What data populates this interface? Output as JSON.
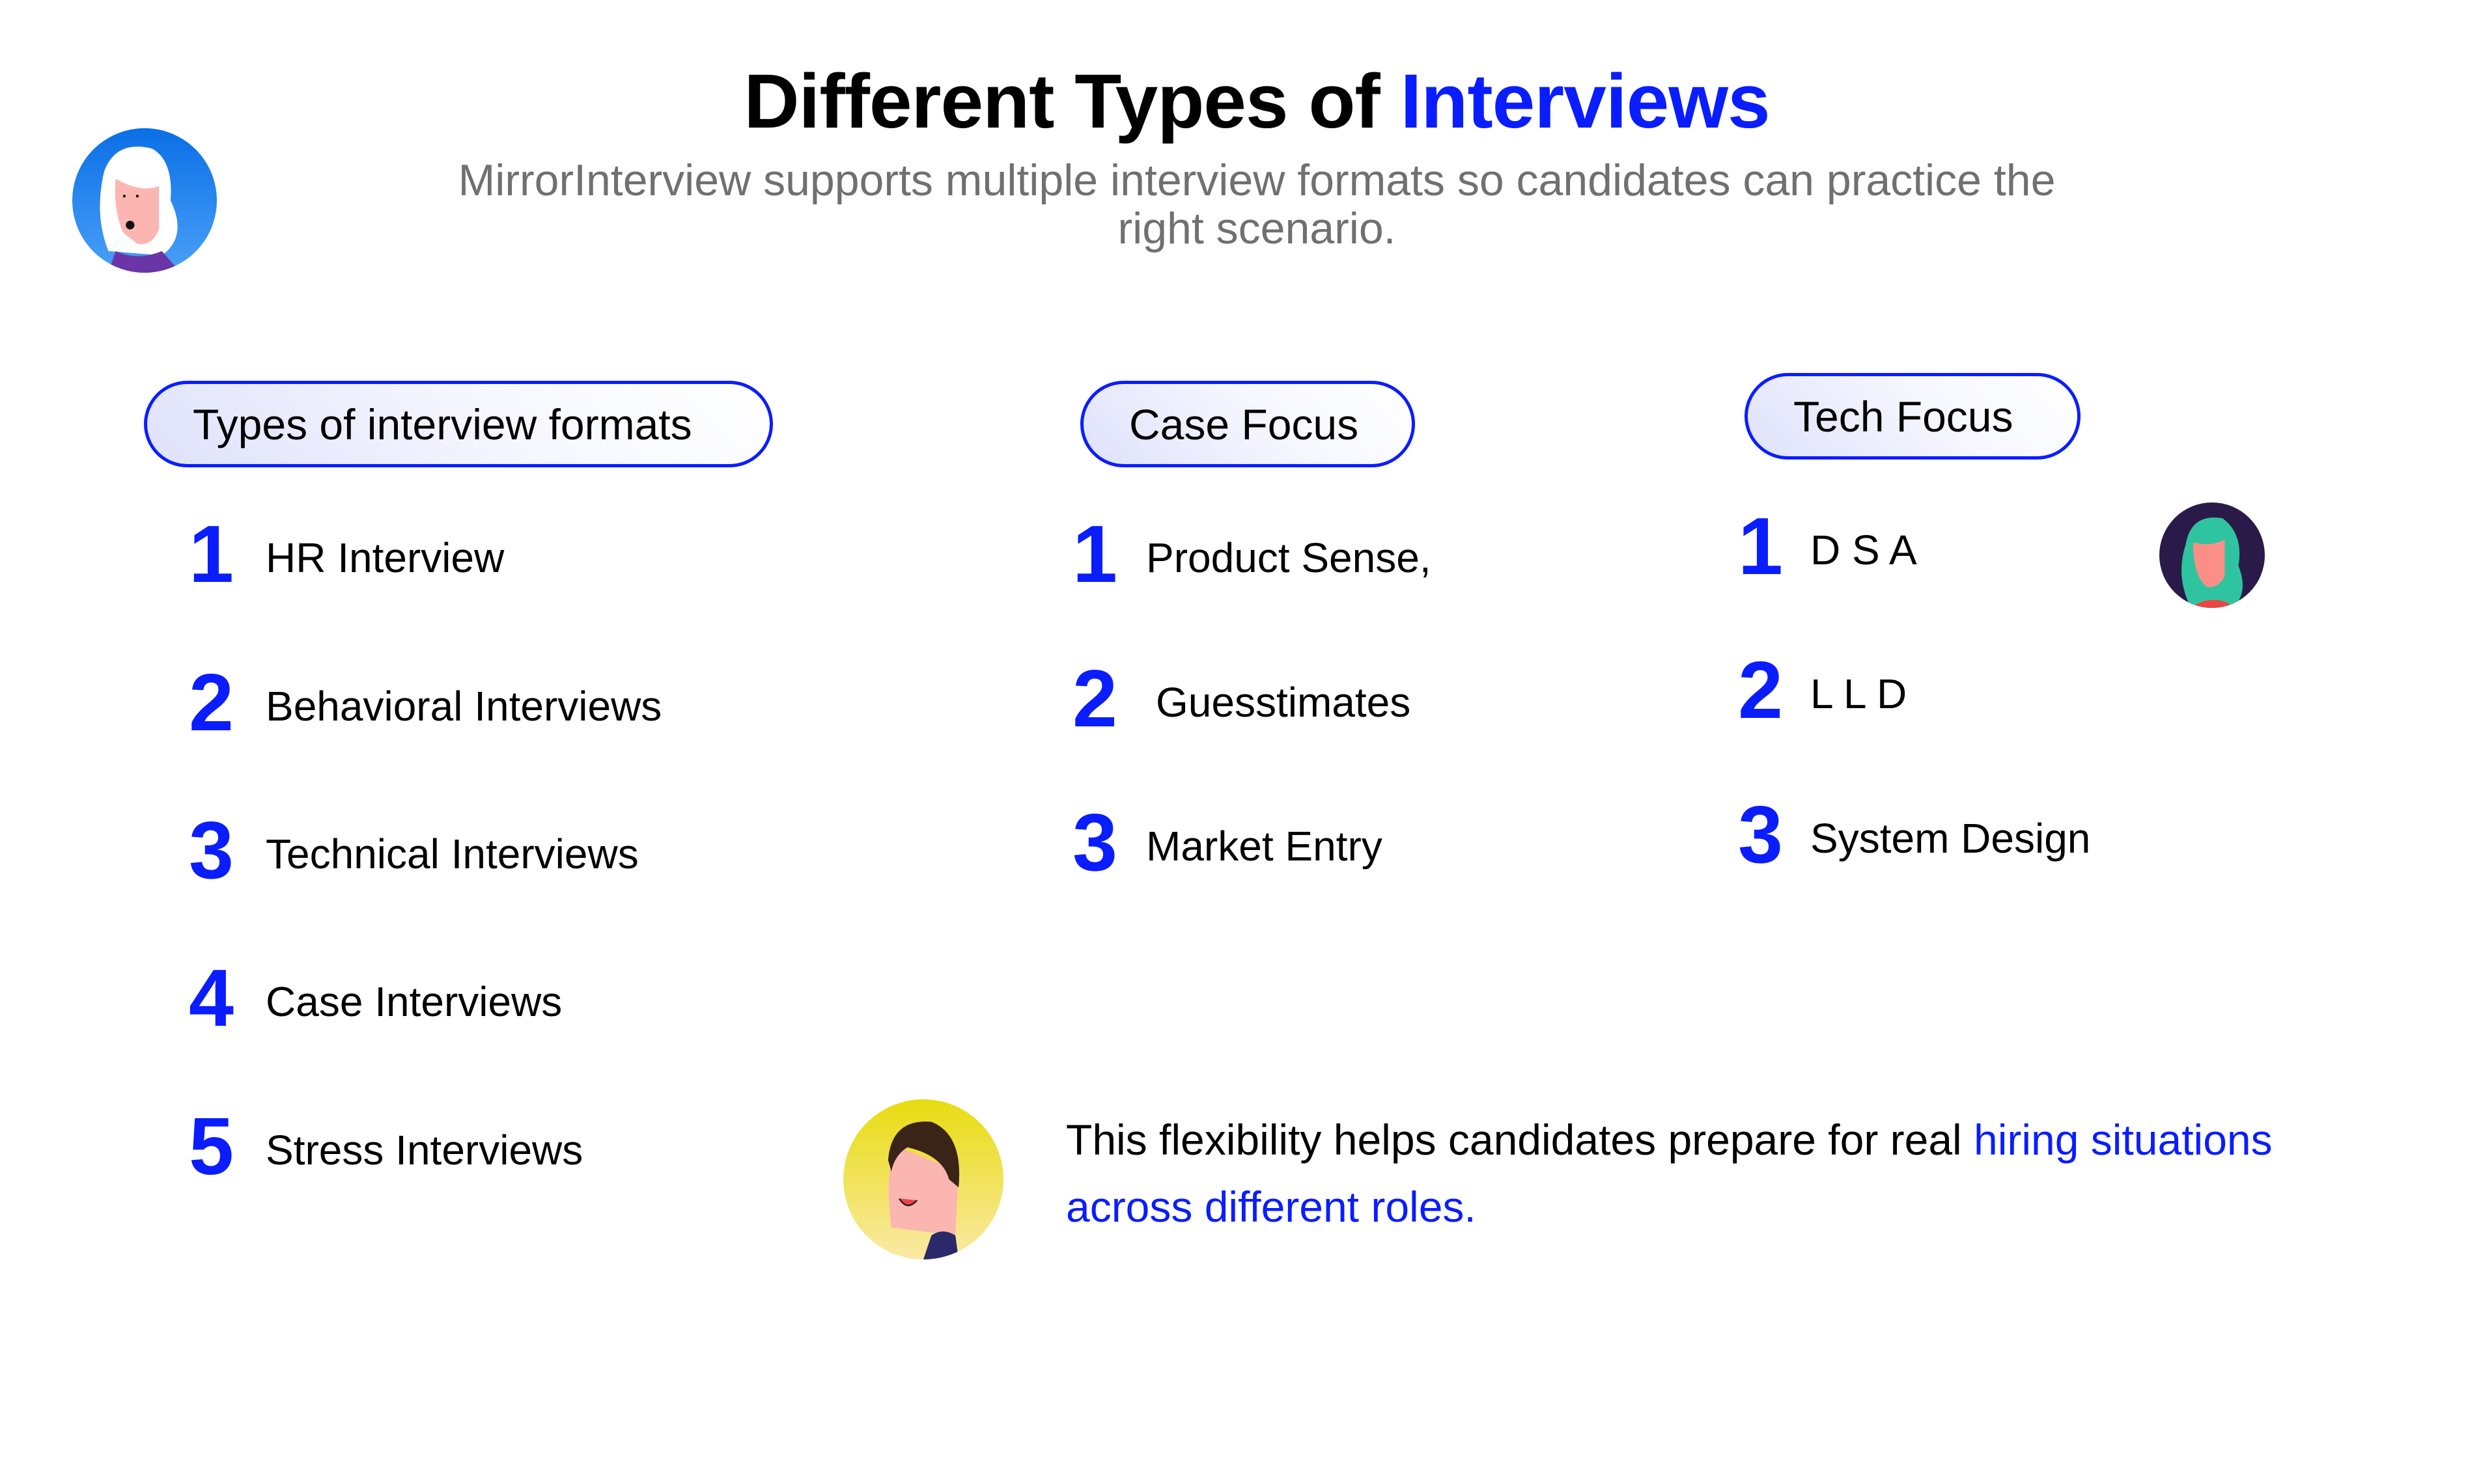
{
  "header": {
    "title_main": "Different Types of",
    "title_accent": "Interviews",
    "subtitle": "MirrorInterview supports multiple interview formats so candidates can practice the right scenario."
  },
  "columns": [
    {
      "heading": "Types of interview formats",
      "items": [
        {
          "num": "1",
          "label": "HR Interview"
        },
        {
          "num": "2",
          "label": "Behavioral Interviews"
        },
        {
          "num": "3",
          "label": "Technical Interviews"
        },
        {
          "num": "4",
          "label": "Case Interviews"
        },
        {
          "num": "5",
          "label": "Stress Interviews"
        }
      ]
    },
    {
      "heading": "Case Focus",
      "items": [
        {
          "num": "1",
          "label": "Product Sense,"
        },
        {
          "num": "2",
          "label": "Guesstimates"
        },
        {
          "num": "3",
          "label": "Market Entry"
        }
      ]
    },
    {
      "heading": "Tech Focus",
      "items": [
        {
          "num": "1",
          "label": "D S A"
        },
        {
          "num": "2",
          "label": "L L D"
        },
        {
          "num": "3",
          "label": "System Design"
        }
      ]
    }
  ],
  "footer": {
    "text_plain": "This flexibility helps candidates prepare for real ",
    "text_accent": "hiring situations across different roles."
  },
  "colors": {
    "accent": "#0a1dff",
    "subtitle": "#707070"
  }
}
